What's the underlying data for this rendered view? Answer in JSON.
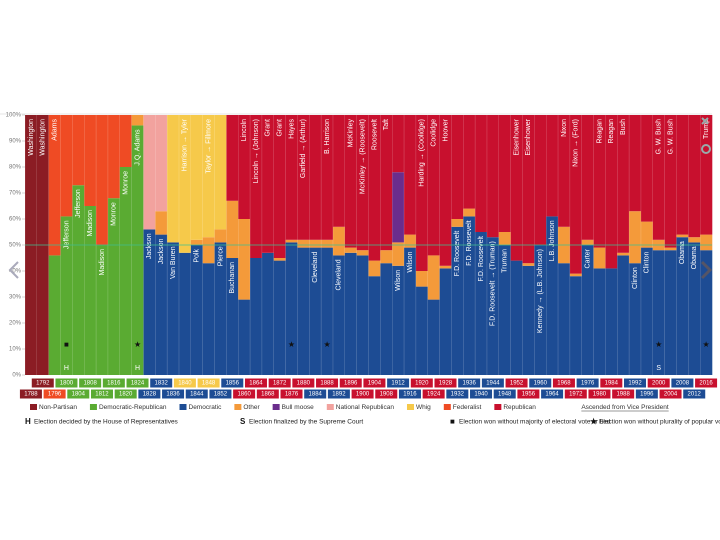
{
  "chart_data": {
    "type": "bar",
    "stacked": true,
    "ylim": [
      0,
      100
    ],
    "yticks": [
      {
        "value": 0,
        "label": "0%"
      },
      {
        "value": 10,
        "label": "10%"
      },
      {
        "value": 20,
        "label": "20%"
      },
      {
        "value": 30,
        "label": "30%"
      },
      {
        "value": 40,
        "label": "40%"
      },
      {
        "value": 50,
        "label": "50%"
      },
      {
        "value": 60,
        "label": "60%"
      },
      {
        "value": 70,
        "label": "70%"
      },
      {
        "value": 80,
        "label": "80%"
      },
      {
        "value": 90,
        "label": "90%"
      },
      {
        "value": 100,
        "label": "100%"
      }
    ],
    "reference_line": 50,
    "categories": [
      "1788",
      "1792",
      "1796",
      "1800",
      "1804",
      "1808",
      "1812",
      "1816",
      "1820",
      "1824",
      "1828",
      "1832",
      "1836",
      "1840",
      "1844",
      "1848",
      "1852",
      "1856",
      "1860",
      "1864",
      "1868",
      "1872",
      "1876",
      "1880",
      "1884",
      "1888",
      "1892",
      "1896",
      "1900",
      "1904",
      "1908",
      "1912",
      "1916",
      "1920",
      "1924",
      "1928",
      "1932",
      "1936",
      "1940",
      "1944",
      "1948",
      "1952",
      "1956",
      "1960",
      "1964",
      "1968",
      "1972",
      "1976",
      "1980",
      "1984",
      "1988",
      "1992",
      "1996",
      "2000",
      "2004",
      "2008",
      "2012",
      "2016"
    ],
    "presidents": [
      "Washington",
      "Washington",
      "Adams",
      "Jefferson",
      "Jefferson",
      "Madison",
      "Madison",
      "Monroe",
      "Monroe",
      "J.Q. Adams",
      "Jackson",
      "Jackson",
      "Van Buren",
      "Harrison → Tyler",
      "Polk",
      "Taylor → Fillmore",
      "Pierce",
      "Buchanan",
      "Lincoln",
      "Lincoln → (Johnson)",
      "Grant",
      "Grant",
      "Hayes",
      "Garfield → (Arthur)",
      "Cleveland",
      "B. Harrison",
      "Cleveland",
      "McKinley",
      "McKinley → (Roosevelt)",
      "Roosevelt",
      "Taft",
      "Wilson",
      "Wilson",
      "Harding → (Coolidge)",
      "Coolidge",
      "Hoover",
      "F.D. Roosevelt",
      "F.D. Roosevelt",
      "F.D. Roosevelt",
      "F.D. Roosevelt → (Truman)",
      "Truman",
      "Eisenhower",
      "Eisenhower",
      "Kennedy → (L.B. Johnson)",
      "L.B. Johnson",
      "Nixon",
      "Nixon → (Ford)",
      "Carter",
      "Reagan",
      "Reagan",
      "Bush",
      "Clinton",
      "Clinton",
      "G. W. Bush",
      "G. W. Bush",
      "Obama",
      "Obama",
      "Trump"
    ],
    "winners": [
      "Non-Partisan",
      "Non-Partisan",
      "Federalist",
      "Democratic-Republican",
      "Democratic-Republican",
      "Democratic-Republican",
      "Democratic-Republican",
      "Democratic-Republican",
      "Democratic-Republican",
      "Democratic-Republican",
      "Democratic",
      "Democratic",
      "Democratic",
      "Whig",
      "Democratic",
      "Whig",
      "Democratic",
      "Democratic",
      "Republican",
      "Republican",
      "Republican",
      "Republican",
      "Republican",
      "Republican",
      "Democratic",
      "Republican",
      "Democratic",
      "Republican",
      "Republican",
      "Republican",
      "Republican",
      "Democratic",
      "Democratic",
      "Republican",
      "Republican",
      "Republican",
      "Democratic",
      "Democratic",
      "Democratic",
      "Democratic",
      "Democratic",
      "Republican",
      "Republican",
      "Democratic",
      "Democratic",
      "Republican",
      "Republican",
      "Democratic",
      "Republican",
      "Republican",
      "Republican",
      "Democratic",
      "Democratic",
      "Republican",
      "Republican",
      "Democratic",
      "Democratic",
      "Republican"
    ],
    "markers": [
      null,
      null,
      null,
      "■",
      null,
      null,
      null,
      null,
      null,
      "★",
      null,
      null,
      null,
      null,
      null,
      null,
      null,
      null,
      null,
      null,
      null,
      null,
      "★",
      null,
      null,
      "★",
      null,
      null,
      null,
      null,
      null,
      null,
      null,
      null,
      null,
      null,
      null,
      null,
      null,
      null,
      null,
      null,
      null,
      null,
      null,
      null,
      null,
      null,
      null,
      null,
      null,
      null,
      null,
      "★",
      null,
      null,
      null,
      "★"
    ],
    "decided_by": [
      null,
      null,
      null,
      "H",
      null,
      null,
      null,
      null,
      null,
      "H",
      null,
      null,
      null,
      null,
      null,
      null,
      null,
      null,
      null,
      null,
      null,
      null,
      null,
      null,
      null,
      null,
      null,
      null,
      null,
      null,
      null,
      null,
      null,
      null,
      null,
      null,
      null,
      null,
      null,
      null,
      null,
      null,
      null,
      null,
      null,
      null,
      null,
      null,
      null,
      null,
      null,
      null,
      null,
      "S",
      null,
      null,
      null,
      null
    ],
    "series": [
      {
        "name": "Non-Partisan",
        "color": "#8b1c24",
        "values": [
          100,
          100,
          null,
          null,
          null,
          null,
          null,
          null,
          null,
          null,
          null,
          null,
          null,
          null,
          null,
          null,
          null,
          null,
          null,
          null,
          null,
          null,
          null,
          null,
          null,
          null,
          null,
          null,
          null,
          null,
          null,
          null,
          null,
          null,
          null,
          null,
          null,
          null,
          null,
          null,
          null,
          null,
          null,
          null,
          null,
          null,
          null,
          null,
          null,
          null,
          null,
          null,
          null,
          null,
          null,
          null,
          null,
          null
        ]
      },
      {
        "name": "Democratic-Republican",
        "color": "#5aab32",
        "values": [
          null,
          null,
          46,
          61,
          73,
          65,
          50,
          68,
          80,
          96,
          null,
          null,
          null,
          null,
          null,
          null,
          null,
          null,
          null,
          null,
          null,
          null,
          null,
          null,
          null,
          null,
          null,
          null,
          null,
          null,
          null,
          null,
          null,
          null,
          null,
          null,
          null,
          null,
          null,
          null,
          null,
          null,
          null,
          null,
          null,
          null,
          null,
          null,
          null,
          null,
          null,
          null,
          null,
          null,
          null,
          null,
          null,
          null
        ]
      },
      {
        "name": "Democratic",
        "color": "#1d4c94",
        "values": [
          null,
          null,
          null,
          null,
          null,
          null,
          null,
          null,
          null,
          null,
          56,
          54,
          51,
          47,
          50,
          43,
          51,
          45,
          29,
          45,
          47,
          44,
          51,
          49,
          49,
          49,
          46,
          47,
          46,
          38,
          43,
          42,
          49,
          34,
          29,
          41,
          57,
          61,
          55,
          53,
          50,
          44,
          42,
          50,
          61,
          43,
          38,
          50,
          41,
          41,
          46,
          43,
          49,
          48,
          48,
          53,
          51,
          48
        ]
      },
      {
        "name": "Other",
        "color": "#f49a3a",
        "values": [
          null,
          null,
          null,
          null,
          null,
          null,
          null,
          null,
          null,
          4,
          null,
          9,
          null,
          null,
          2,
          10,
          5,
          22,
          31,
          null,
          null,
          1,
          1,
          3,
          3,
          3,
          11,
          2,
          2,
          6,
          5,
          9,
          5,
          6,
          17,
          1,
          3,
          3,
          null,
          null,
          5,
          null,
          1,
          null,
          null,
          14,
          1,
          2,
          8,
          null,
          1,
          20,
          10,
          4,
          1,
          1,
          2,
          6
        ]
      },
      {
        "name": "Bull moose",
        "color": "#6a2d8c",
        "values": [
          null,
          null,
          null,
          null,
          null,
          null,
          null,
          null,
          null,
          null,
          null,
          null,
          null,
          null,
          null,
          null,
          null,
          null,
          null,
          null,
          null,
          null,
          null,
          null,
          null,
          null,
          null,
          null,
          null,
          null,
          null,
          27,
          null,
          null,
          null,
          null,
          null,
          null,
          null,
          null,
          null,
          null,
          null,
          null,
          null,
          null,
          null,
          null,
          null,
          null,
          null,
          null,
          null,
          null,
          null,
          null,
          null,
          null
        ]
      },
      {
        "name": "National Republican",
        "color": "#f2a29e",
        "values": [
          null,
          null,
          null,
          null,
          null,
          null,
          null,
          null,
          null,
          null,
          44,
          37,
          null,
          null,
          null,
          null,
          null,
          null,
          null,
          null,
          null,
          null,
          null,
          null,
          null,
          null,
          null,
          null,
          null,
          null,
          null,
          null,
          null,
          null,
          null,
          null,
          null,
          null,
          null,
          null,
          null,
          null,
          null,
          null,
          null,
          null,
          null,
          null,
          null,
          null,
          null,
          null,
          null,
          null,
          null,
          null,
          null,
          null
        ]
      },
      {
        "name": "Whig",
        "color": "#f6c94a",
        "values": [
          null,
          null,
          null,
          null,
          null,
          null,
          null,
          null,
          null,
          null,
          null,
          null,
          49,
          53,
          48,
          47,
          44,
          null,
          null,
          null,
          null,
          null,
          null,
          null,
          null,
          null,
          null,
          null,
          null,
          null,
          null,
          null,
          null,
          null,
          null,
          null,
          null,
          null,
          null,
          null,
          null,
          null,
          null,
          null,
          null,
          null,
          null,
          null,
          null,
          null,
          null,
          null,
          null,
          null,
          null,
          null,
          null,
          null
        ]
      },
      {
        "name": "Federalist",
        "color": "#ef4b24",
        "values": [
          null,
          null,
          54,
          39,
          27,
          35,
          50,
          32,
          20,
          null,
          null,
          null,
          null,
          null,
          null,
          null,
          null,
          null,
          null,
          null,
          null,
          null,
          null,
          null,
          null,
          null,
          null,
          null,
          null,
          null,
          null,
          null,
          null,
          null,
          null,
          null,
          null,
          null,
          null,
          null,
          null,
          null,
          null,
          null,
          null,
          null,
          null,
          null,
          null,
          null,
          null,
          null,
          null,
          null,
          null,
          null,
          null,
          null
        ]
      },
      {
        "name": "Republican",
        "color": "#c8102e",
        "values": [
          null,
          null,
          null,
          null,
          null,
          null,
          null,
          null,
          null,
          null,
          null,
          null,
          null,
          null,
          null,
          null,
          null,
          33,
          40,
          55,
          53,
          55,
          48,
          48,
          48,
          48,
          43,
          51,
          52,
          56,
          52,
          22,
          46,
          60,
          54,
          58,
          40,
          36,
          45,
          47,
          45,
          56,
          57,
          50,
          39,
          43,
          61,
          48,
          51,
          59,
          53,
          37,
          41,
          48,
          51,
          46,
          47,
          46
        ]
      }
    ],
    "vp_note": "Ascended from Vice President",
    "footnotes": [
      {
        "symbol": "H",
        "text": "Election decided by the House of Representatives"
      },
      {
        "symbol": "S",
        "text": "Election finalized by the Supreme Court"
      },
      {
        "symbol": "■",
        "text": "Election won without majority of electoral vote or tied"
      },
      {
        "symbol": "★",
        "text": "Election won without plurality of popular vote"
      }
    ]
  }
}
